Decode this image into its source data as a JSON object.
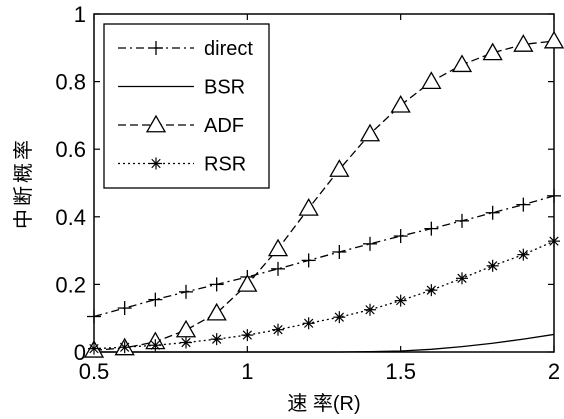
{
  "chart_data": {
    "type": "line",
    "xlabel": "速 率(R)",
    "ylabel": "中断概率",
    "xlim": [
      0.5,
      2
    ],
    "ylim": [
      0,
      1
    ],
    "xticks": [
      0.5,
      1,
      1.5,
      2
    ],
    "xtick_labels": [
      "0.5",
      "1",
      "1.5",
      "2"
    ],
    "yticks": [
      0,
      0.2,
      0.4,
      0.6,
      0.8,
      1
    ],
    "ytick_labels": [
      "0",
      "0.2",
      "0.4",
      "0.6",
      "0.8",
      "1"
    ],
    "grid": false,
    "legend_position": "top-left",
    "series": [
      {
        "name": "direct",
        "style": "dashdot",
        "marker": "plus",
        "color": "#000000",
        "x": [
          0.5,
          0.6,
          0.7,
          0.8,
          0.9,
          1.0,
          1.1,
          1.2,
          1.3,
          1.4,
          1.5,
          1.6,
          1.7,
          1.8,
          1.9,
          2.0
        ],
        "y": [
          0.105,
          0.13,
          0.155,
          0.178,
          0.2,
          0.222,
          0.246,
          0.271,
          0.296,
          0.32,
          0.343,
          0.365,
          0.388,
          0.412,
          0.436,
          0.462
        ]
      },
      {
        "name": "BSR",
        "style": "solid",
        "marker": "none",
        "color": "#000000",
        "x": [
          0.5,
          0.6,
          0.7,
          0.8,
          0.9,
          1.0,
          1.1,
          1.2,
          1.3,
          1.4,
          1.5,
          1.6,
          1.7,
          1.8,
          1.9,
          2.0
        ],
        "y": [
          0.0,
          0.0,
          0.0,
          0.0,
          0.0,
          0.0,
          0.0,
          0.0,
          0.0,
          0.001,
          0.003,
          0.008,
          0.016,
          0.026,
          0.038,
          0.052
        ]
      },
      {
        "name": "ADF",
        "style": "dashed",
        "marker": "triangle",
        "color": "#000000",
        "x": [
          0.5,
          0.6,
          0.7,
          0.8,
          0.9,
          1.0,
          1.1,
          1.2,
          1.3,
          1.4,
          1.5,
          1.6,
          1.7,
          1.8,
          1.9,
          2.0
        ],
        "y": [
          0.005,
          0.012,
          0.03,
          0.065,
          0.115,
          0.2,
          0.305,
          0.425,
          0.54,
          0.645,
          0.73,
          0.8,
          0.85,
          0.885,
          0.91,
          0.92
        ]
      },
      {
        "name": "RSR",
        "style": "dotted",
        "marker": "star",
        "color": "#000000",
        "x": [
          0.5,
          0.6,
          0.7,
          0.8,
          0.9,
          1.0,
          1.1,
          1.2,
          1.3,
          1.4,
          1.5,
          1.6,
          1.7,
          1.8,
          1.9,
          2.0
        ],
        "y": [
          0.01,
          0.014,
          0.02,
          0.028,
          0.038,
          0.05,
          0.066,
          0.085,
          0.103,
          0.125,
          0.152,
          0.183,
          0.218,
          0.255,
          0.288,
          0.328
        ]
      }
    ]
  }
}
